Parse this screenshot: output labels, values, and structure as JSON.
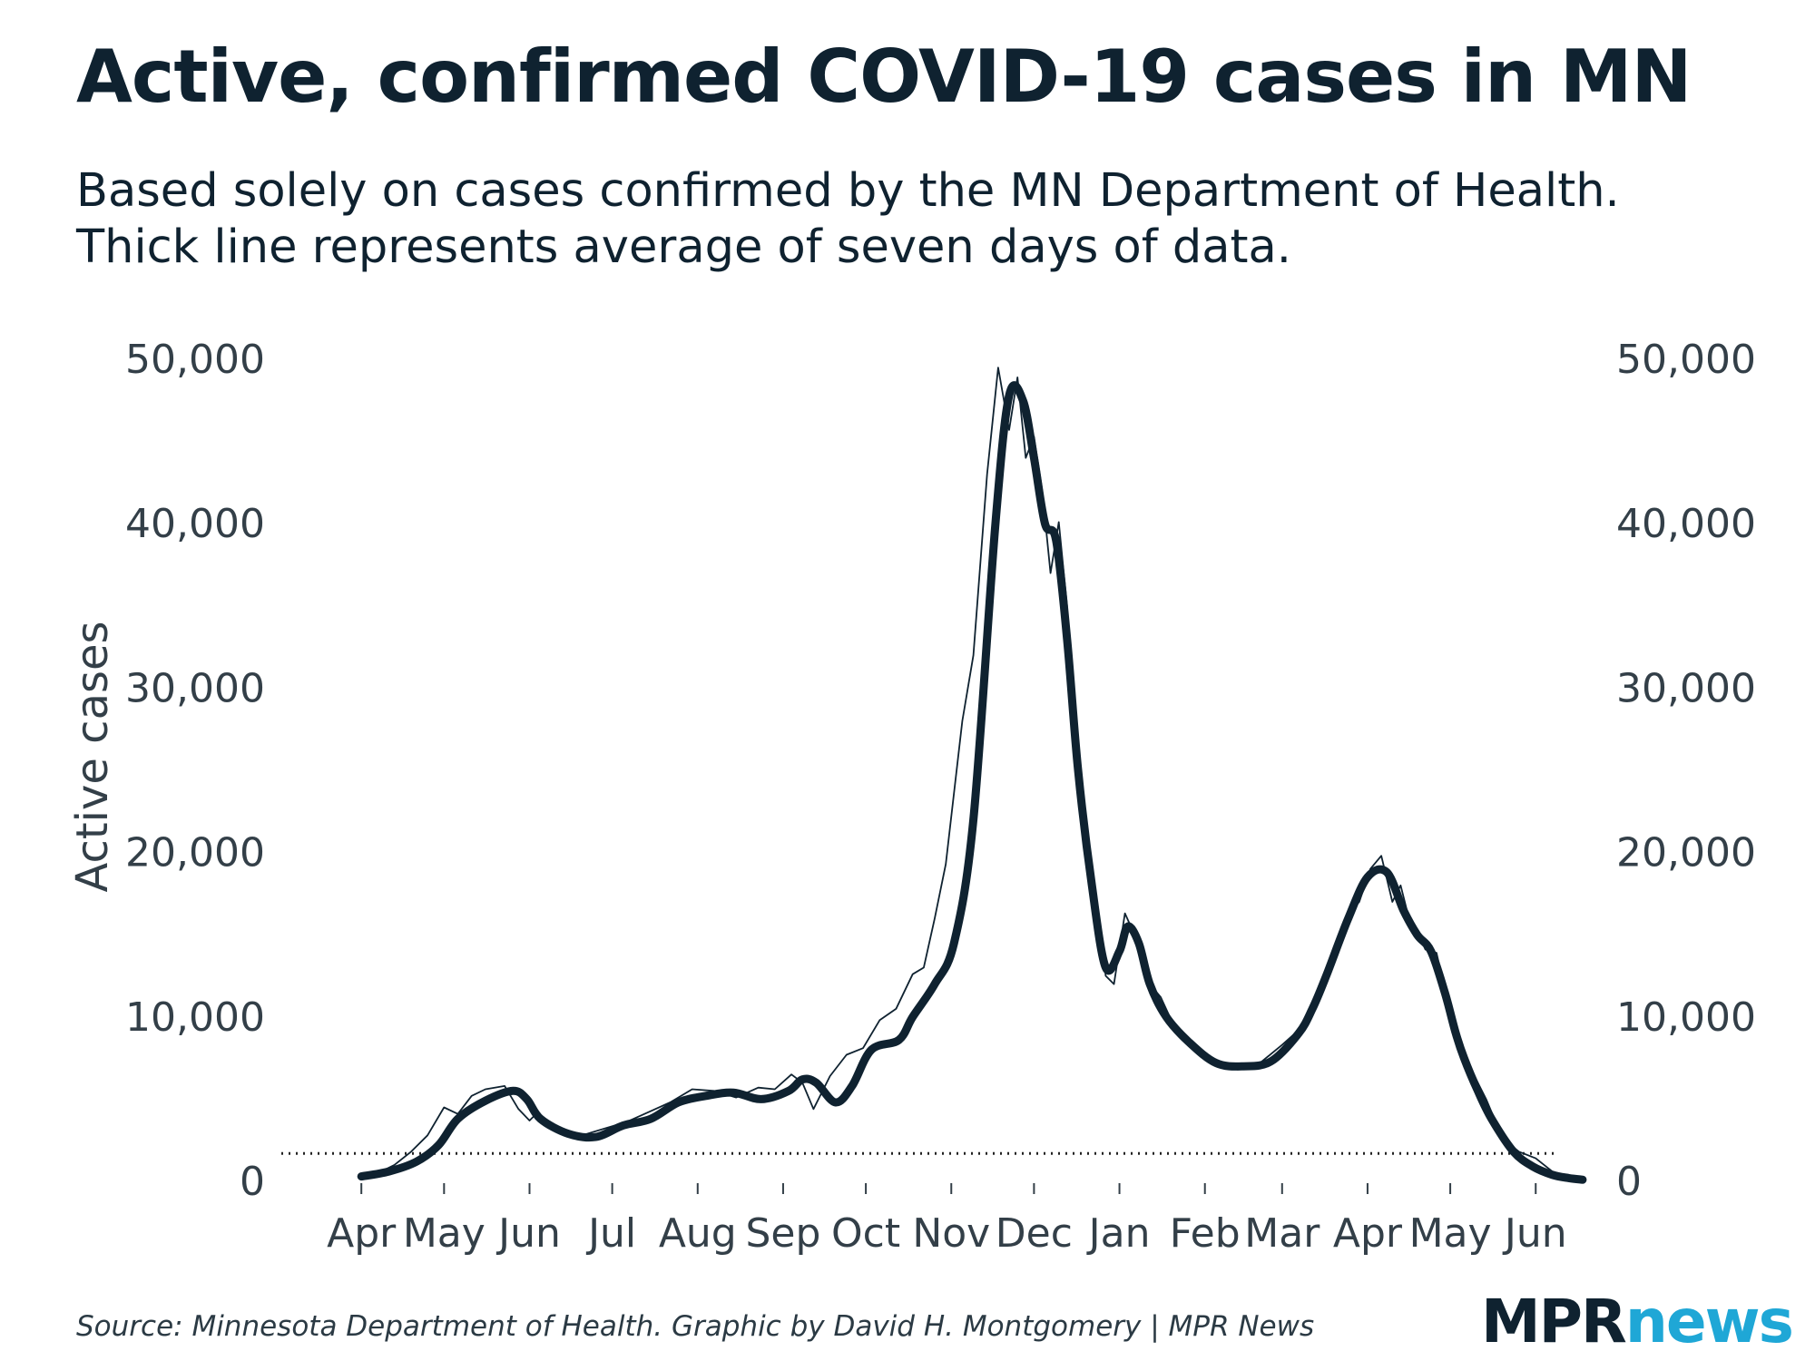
{
  "title": "Active, confirmed COVID-19 cases in MN",
  "subtitle": {
    "line1": "Based solely on cases confirmed by the MN Department of Health.",
    "line2": "Thick line represents average of seven days of data."
  },
  "source": "Source: Minnesota Department of Health. Graphic by David H. Montgomery | MPR News",
  "logo": {
    "part1": "MPR",
    "part2": "news"
  },
  "colors": {
    "line": "#0f2230",
    "text": "#333f48",
    "logo_accent": "#1fa7d6"
  },
  "chart_data": {
    "type": "line",
    "title": "Active, confirmed COVID-19 cases in MN",
    "ylabel": "Active cases",
    "xlabel": "",
    "ylim": [
      0,
      50000
    ],
    "yticks": [
      0,
      10000,
      20000,
      30000,
      40000,
      50000
    ],
    "ytick_labels": [
      "0",
      "10,000",
      "20,000",
      "30,000",
      "40,000",
      "50,000"
    ],
    "xlim": [
      -5,
      446
    ],
    "xticks": [
      {
        "label": "Apr",
        "day": 0
      },
      {
        "label": "May",
        "day": 30
      },
      {
        "label": "Jun",
        "day": 61
      },
      {
        "label": "Jul",
        "day": 91
      },
      {
        "label": "Aug",
        "day": 122
      },
      {
        "label": "Sep",
        "day": 153
      },
      {
        "label": "Oct",
        "day": 183
      },
      {
        "label": "Nov",
        "day": 214
      },
      {
        "label": "Dec",
        "day": 244
      },
      {
        "label": "Jan",
        "day": 275
      },
      {
        "label": "Feb",
        "day": 306
      },
      {
        "label": "Mar",
        "day": 334
      },
      {
        "label": "Apr",
        "day": 365
      },
      {
        "label": "May",
        "day": 395
      },
      {
        "label": "Jun",
        "day": 426
      }
    ],
    "reference_line": {
      "value": 1700,
      "style": "dotted"
    },
    "series": [
      {
        "name": "7-day average",
        "style": "thick",
        "x": [
          0,
          10,
          20,
          28,
          35,
          45,
          55,
          60,
          65,
          75,
          85,
          95,
          105,
          115,
          125,
          135,
          145,
          155,
          160,
          165,
          172,
          178,
          185,
          195,
          200,
          208,
          215,
          222,
          230,
          235,
          240,
          244,
          248,
          252,
          256,
          260,
          265,
          270,
          275,
          278,
          282,
          286,
          292,
          300,
          310,
          320,
          330,
          340,
          345,
          350,
          358,
          365,
          372,
          378,
          383,
          388,
          393,
          397,
          400,
          405,
          410,
          418,
          425,
          432,
          438,
          443
        ],
        "values": [
          300,
          600,
          1200,
          2200,
          3800,
          4900,
          5500,
          5000,
          3800,
          2900,
          2700,
          3400,
          3800,
          4800,
          5200,
          5400,
          5000,
          5500,
          6200,
          6000,
          4800,
          5800,
          8000,
          8600,
          10000,
          12000,
          14500,
          22000,
          40000,
          47800,
          47500,
          44000,
          40000,
          39000,
          33000,
          25000,
          18000,
          13000,
          14000,
          15500,
          14500,
          12000,
          10000,
          8500,
          7200,
          7000,
          7300,
          9000,
          10500,
          12500,
          16000,
          18500,
          18800,
          16500,
          15000,
          14000,
          11500,
          9000,
          7500,
          5500,
          3800,
          1800,
          900,
          400,
          200,
          100
        ]
      },
      {
        "name": "Daily",
        "style": "thin",
        "x": [
          0,
          6,
          12,
          18,
          24,
          30,
          35,
          40,
          45,
          52,
          57,
          61,
          64,
          68,
          74,
          80,
          88,
          96,
          104,
          112,
          120,
          128,
          136,
          144,
          150,
          156,
          160,
          164,
          170,
          176,
          182,
          188,
          194,
          200,
          204,
          208,
          212,
          218,
          222,
          227,
          231,
          235,
          238,
          241,
          244,
          247,
          250,
          253,
          256,
          259,
          262,
          266,
          270,
          273,
          277,
          281,
          285,
          290,
          296,
          302,
          310,
          318,
          326,
          334,
          340,
          346,
          352,
          358,
          362,
          366,
          370,
          374,
          377,
          380,
          383,
          386,
          390,
          394,
          398,
          402,
          408,
          414,
          420,
          426,
          432,
          438,
          443
        ],
        "values": [
          200,
          500,
          1000,
          1800,
          2800,
          4500,
          4100,
          5200,
          5600,
          5800,
          4400,
          3700,
          4200,
          3300,
          3100,
          2800,
          3200,
          3600,
          4200,
          4800,
          5600,
          5500,
          5100,
          5700,
          5600,
          6500,
          6000,
          4400,
          6400,
          7700,
          8100,
          9800,
          10500,
          12600,
          13000,
          16000,
          19300,
          28000,
          32000,
          43000,
          49500,
          45700,
          48900,
          44000,
          45300,
          42000,
          37000,
          40100,
          35000,
          26000,
          22000,
          18000,
          12500,
          12000,
          16300,
          14800,
          12200,
          11200,
          9000,
          8000,
          7000,
          6800,
          7200,
          8300,
          9200,
          11000,
          12900,
          16300,
          17000,
          19000,
          19800,
          17000,
          18000,
          16000,
          15200,
          14100,
          13900,
          11000,
          8800,
          7000,
          5000,
          2600,
          1800,
          1400,
          600,
          300,
          100
        ]
      }
    ]
  }
}
